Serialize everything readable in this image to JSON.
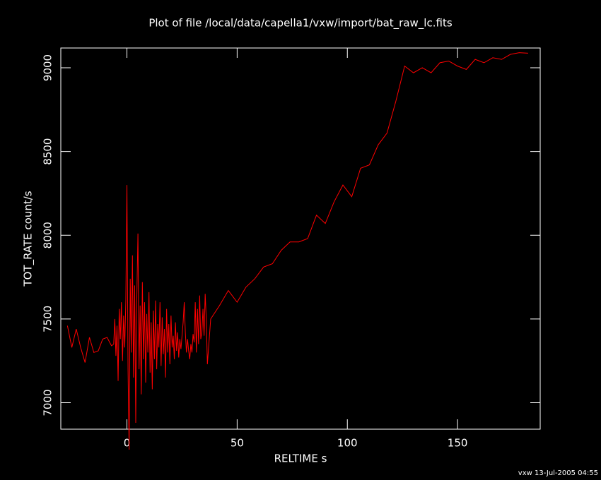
{
  "chart_data": {
    "type": "line",
    "title": "Plot of file /local/data/capella1/vxw/import/bat_raw_lc.fits",
    "x_label": "RELTIME  s",
    "y_label": "TOT_RATE  count/s",
    "footer": "vxw 13-Jul-2005 04:55",
    "xlim": [
      -30,
      187.5
    ],
    "ylim": [
      6842,
      9118
    ],
    "xticks": [
      0,
      50,
      100,
      150
    ],
    "yticks": [
      7000,
      7500,
      8000,
      8500,
      9000
    ],
    "x": [
      -27,
      -25,
      -23,
      -21,
      -19,
      -17,
      -15,
      -13,
      -11,
      -9,
      -7,
      -6,
      -5.5,
      -5,
      -4.5,
      -4,
      -3.5,
      -3,
      -2.5,
      -2,
      -1.5,
      -1,
      -0.5,
      0,
      0.5,
      1,
      1.5,
      2,
      2.5,
      3,
      3.5,
      4,
      4.5,
      5,
      5.5,
      6,
      6.5,
      7,
      7.5,
      8,
      8.5,
      9,
      9.5,
      10,
      10.5,
      11,
      11.5,
      12,
      12.5,
      13,
      13.5,
      14,
      14.5,
      15,
      15.5,
      16,
      16.5,
      17,
      17.5,
      18,
      18.5,
      19,
      19.5,
      20,
      20.5,
      21,
      21.5,
      22,
      22.5,
      23,
      23.5,
      24,
      24.5,
      25,
      25.5,
      26,
      26.5,
      27,
      27.5,
      28,
      28.5,
      29,
      29.5,
      30,
      30.5,
      31,
      31.5,
      32,
      32.5,
      33,
      33.5,
      34,
      34.5,
      35,
      35.5,
      36,
      36.5,
      38,
      42,
      46,
      50,
      54,
      58,
      62,
      66,
      70,
      74,
      78,
      82,
      86,
      90,
      94,
      98,
      102,
      106,
      110,
      114,
      118,
      122,
      126,
      130,
      134,
      138,
      142,
      146,
      150,
      154,
      158,
      162,
      166,
      170,
      174,
      178,
      182
    ],
    "series": [
      {
        "name": "TOT_RATE",
        "color": "#ff0000",
        "values": [
          7460,
          7330,
          7440,
          7330,
          7240,
          7390,
          7300,
          7310,
          7380,
          7390,
          7340,
          7350,
          7500,
          7280,
          7460,
          7130,
          7560,
          7380,
          7600,
          7250,
          7520,
          7330,
          7610,
          8300,
          7200,
          6720,
          7740,
          7300,
          7880,
          7150,
          7700,
          6880,
          7640,
          8010,
          7200,
          7580,
          7050,
          7720,
          7260,
          7600,
          7120,
          7530,
          7300,
          7660,
          7180,
          7480,
          7080,
          7550,
          7260,
          7610,
          7200,
          7470,
          7330,
          7600,
          7220,
          7510,
          7290,
          7440,
          7150,
          7560,
          7300,
          7470,
          7230,
          7520,
          7330,
          7400,
          7260,
          7480,
          7310,
          7420,
          7270,
          7380,
          7320,
          7400,
          7480,
          7600,
          7420,
          7300,
          7380,
          7310,
          7260,
          7350,
          7300,
          7410,
          7360,
          7600,
          7300,
          7560,
          7350,
          7640,
          7380,
          7420,
          7560,
          7400,
          7650,
          7500,
          7230,
          7500,
          7580,
          7670,
          7600,
          7690,
          7740,
          7810,
          7830,
          7910,
          7960,
          7960,
          7980,
          8120,
          8070,
          8200,
          8300,
          8230,
          8400,
          8420,
          8540,
          8610,
          8800,
          9010,
          8970,
          9000,
          8970,
          9030,
          9040,
          9010,
          8990,
          9050,
          9030,
          9060,
          9050,
          9080,
          9090,
          9087
        ]
      }
    ]
  }
}
